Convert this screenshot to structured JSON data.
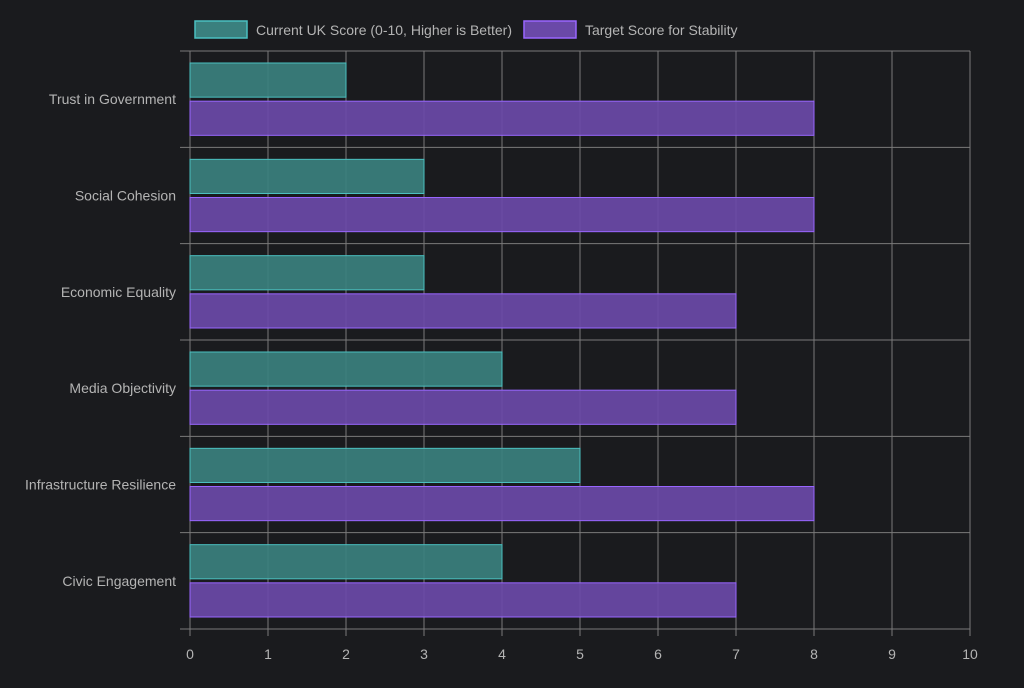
{
  "chart_data": {
    "type": "bar",
    "orientation": "horizontal",
    "title": "",
    "xlabel": "",
    "ylabel": "",
    "categories": [
      "Trust in Government",
      "Social Cohesion",
      "Economic Equality",
      "Media Objectivity",
      "Infrastructure Resilience",
      "Civic Engagement"
    ],
    "series": [
      {
        "name": "Current UK Score (0-10, Higher is Better)",
        "values": [
          2,
          3,
          3,
          4,
          5,
          4
        ],
        "fill": "#3a807e",
        "border": "#4bc0c0"
      },
      {
        "name": "Target Score for Stability",
        "values": [
          8,
          8,
          7,
          7,
          8,
          7
        ],
        "fill": "#6a49a8",
        "border": "#9966ff"
      }
    ],
    "xlim": [
      0,
      10
    ],
    "xticks": [
      "0",
      "1",
      "2",
      "3",
      "4",
      "5",
      "6",
      "7",
      "8",
      "9",
      "10"
    ],
    "grid": true,
    "legend_position": "top"
  }
}
